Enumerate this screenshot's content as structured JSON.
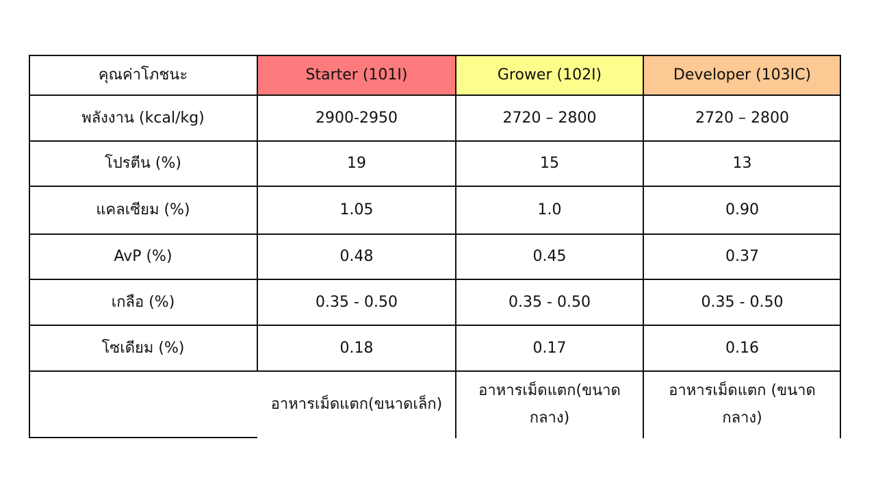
{
  "table": {
    "header": {
      "label": "คุณค่าโภชนะ",
      "columns": [
        {
          "name": "Starter (101I)",
          "color": "#fd7b7c"
        },
        {
          "name": "Grower (102I)",
          "color": "#fdfd8c"
        },
        {
          "name": "Developer (103IC)",
          "color": "#fcc893"
        }
      ]
    },
    "rows": [
      {
        "label": "พลังงาน (kcal/kg)",
        "values": [
          "2900-2950",
          "2720 – 2800",
          "2720 – 2800"
        ]
      },
      {
        "label": "โปรตีน (%)",
        "values": [
          "19",
          "15",
          "13"
        ]
      },
      {
        "label": "แคลเซียม (%)",
        "values": [
          "1.05",
          "1.0",
          "0.90"
        ]
      },
      {
        "label": "AvP  (%)",
        "values": [
          "0.48",
          "0.45",
          "0.37"
        ]
      },
      {
        "label": "เกลือ (%)",
        "values": [
          "0.35 - 0.50",
          "0.35 - 0.50",
          "0.35 - 0.50"
        ]
      },
      {
        "label": "โซเดียม (%)",
        "values": [
          "0.18",
          "0.17",
          "0.16"
        ]
      }
    ],
    "notes": {
      "label": "",
      "values": [
        [
          "อาหารเม็ดแตก(ขนาดเล็ก)"
        ],
        [
          "อาหารเม็ดแตก(ขนาด",
          "กลาง)"
        ],
        [
          "อาหารเม็ดแตก (ขนาด",
          "กลาง)"
        ]
      ]
    }
  }
}
